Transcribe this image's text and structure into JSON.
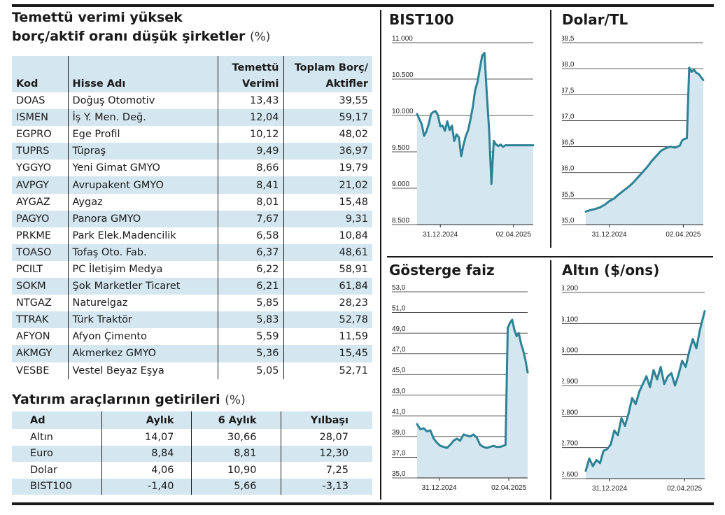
{
  "dividend_section": {
    "title_line1": "Temettü verimi yüksek",
    "title_line2": "borç/aktif oranı düşük şirketler",
    "title_unit": "(%)",
    "headers": {
      "code": "Kod",
      "name": "Hisse Adı",
      "yield_line1": "Temettü",
      "yield_line2": "Verimi",
      "debt_line1": "Toplam Borç/",
      "debt_line2": "Aktifler"
    },
    "rows": [
      {
        "code": "DOAS",
        "name": "Doğuş Otomotiv",
        "yield": "13,43",
        "debt": "39,55"
      },
      {
        "code": "ISMEN",
        "name": "İş Y. Men. Değ.",
        "yield": "12,04",
        "debt": "59,17"
      },
      {
        "code": "EGPRO",
        "name": "Ege Profil",
        "yield": "10,12",
        "debt": "48,02"
      },
      {
        "code": "TUPRS",
        "name": "Tüpraş",
        "yield": "9,49",
        "debt": "36,97"
      },
      {
        "code": "YGGYO",
        "name": "Yeni Gimat GMYO",
        "yield": "8,66",
        "debt": "19,79"
      },
      {
        "code": "AVPGY",
        "name": "Avrupakent GMYO",
        "yield": "8,41",
        "debt": "21,02"
      },
      {
        "code": "AYGAZ",
        "name": "Aygaz",
        "yield": "8,01",
        "debt": "15,48"
      },
      {
        "code": "PAGYO",
        "name": "Panora GMYO",
        "yield": "7,67",
        "debt": "9,31"
      },
      {
        "code": "PRKME",
        "name": "Park Elek.Madencilik",
        "yield": "6,58",
        "debt": "10,84"
      },
      {
        "code": "TOASO",
        "name": "Tofaş Oto. Fab.",
        "yield": "6,37",
        "debt": "48,61"
      },
      {
        "code": "PCILT",
        "name": "PC İletişim Medya",
        "yield": "6,22",
        "debt": "58,91"
      },
      {
        "code": "SOKM",
        "name": "Şok Marketler Ticaret",
        "yield": "6,21",
        "debt": "61,84"
      },
      {
        "code": "NTGAZ",
        "name": "Naturelgaz",
        "yield": "5,85",
        "debt": "28,23"
      },
      {
        "code": "TTRAK",
        "name": "Türk Traktör",
        "yield": "5,83",
        "debt": "52,78"
      },
      {
        "code": "AFYON",
        "name": "Afyon Çimento",
        "yield": "5,59",
        "debt": "11,59"
      },
      {
        "code": "AKMGY",
        "name": "Akmerkez GMYO",
        "yield": "5,36",
        "debt": "15,45"
      },
      {
        "code": "VESBE",
        "name": "Vestel Beyaz Eşya",
        "yield": "5,05",
        "debt": "52,71"
      }
    ]
  },
  "returns_section": {
    "title": "Yatırım araçlarının getirileri",
    "title_unit": "(%)",
    "headers": {
      "asset": "Ad",
      "monthly": "Aylık",
      "six_month": "6 Aylık",
      "ytd": "Yılbaşı"
    },
    "rows": [
      {
        "asset": "Altın",
        "monthly": "14,07",
        "six_month": "30,66",
        "ytd": "28,07"
      },
      {
        "asset": "Euro",
        "monthly": "8,84",
        "six_month": "8,81",
        "ytd": "12,30"
      },
      {
        "asset": "Dolar",
        "monthly": "4,06",
        "six_month": "10,90",
        "ytd": "7,25"
      },
      {
        "asset": "BIST100",
        "monthly": "-1,40",
        "six_month": "5,66",
        "ytd": "-3,13"
      }
    ]
  },
  "colors": {
    "line": "#2d8296",
    "fill": "#d4e6f0",
    "rule": "#1a1a1a",
    "band": "#d4e6f0"
  },
  "chart_data": [
    {
      "type": "area",
      "title": "BIST100",
      "ylim": [
        8500,
        11000
      ],
      "yticks": [
        "11.000",
        "10.500",
        "10.000",
        "9.500",
        "9.000",
        "8.500"
      ],
      "ytick_values": [
        11000,
        10500,
        10000,
        9500,
        9000,
        8500
      ],
      "xticks": [
        "31.12.2024",
        "02.04.2025"
      ],
      "xtick_positions": [
        0.2,
        0.83
      ],
      "x": [
        0,
        0.02,
        0.04,
        0.06,
        0.08,
        0.1,
        0.12,
        0.14,
        0.16,
        0.18,
        0.2,
        0.22,
        0.24,
        0.26,
        0.28,
        0.3,
        0.32,
        0.34,
        0.36,
        0.38,
        0.4,
        0.42,
        0.44,
        0.46,
        0.48,
        0.5,
        0.52,
        0.54,
        0.56,
        0.58,
        0.6,
        0.62,
        0.64,
        0.66,
        0.68,
        0.7,
        0.72,
        0.74,
        0.76,
        0.78,
        0.8,
        0.82,
        0.84,
        0.86,
        0.88,
        0.9,
        0.92,
        0.94,
        0.96,
        0.98,
        1
      ],
      "values": [
        10020,
        9950,
        9880,
        9720,
        9780,
        9880,
        10020,
        10050,
        10060,
        10000,
        9850,
        9860,
        9790,
        9920,
        9800,
        9860,
        9650,
        9740,
        9700,
        9440,
        9600,
        9720,
        9800,
        9950,
        10120,
        10350,
        10460,
        10640,
        10820,
        10860,
        10300,
        9800,
        9060,
        9650,
        9600,
        9580,
        9600,
        9570,
        9590,
        9590,
        9590,
        9590,
        9590,
        9590,
        9590,
        9590,
        9590,
        9590,
        9590,
        9590,
        9590
      ]
    },
    {
      "type": "area",
      "title": "Dolar/TL",
      "ylim": [
        35.0,
        38.5
      ],
      "yticks": [
        "38,5",
        "38,0",
        "37,5",
        "37,0",
        "36,5",
        "36,0",
        "35,5",
        "35,0"
      ],
      "ytick_values": [
        38.5,
        38.0,
        37.5,
        37.0,
        36.5,
        36.0,
        35.5,
        35.0
      ],
      "xticks": [
        "31.12.2024",
        "02.04.2025"
      ],
      "xtick_positions": [
        0.2,
        0.83
      ],
      "x": [
        0,
        0.04,
        0.08,
        0.12,
        0.16,
        0.2,
        0.24,
        0.28,
        0.32,
        0.36,
        0.4,
        0.44,
        0.48,
        0.52,
        0.56,
        0.6,
        0.64,
        0.68,
        0.72,
        0.76,
        0.8,
        0.82,
        0.84,
        0.86,
        0.88,
        0.9,
        0.92,
        0.94,
        0.96,
        1
      ],
      "values": [
        35.25,
        35.28,
        35.3,
        35.33,
        35.38,
        35.45,
        35.5,
        35.58,
        35.65,
        35.72,
        35.8,
        35.9,
        36.0,
        36.1,
        36.22,
        36.32,
        36.42,
        36.47,
        36.5,
        36.48,
        36.52,
        36.62,
        36.65,
        36.66,
        38.02,
        37.94,
        37.98,
        37.92,
        37.9,
        37.78
      ]
    },
    {
      "type": "area",
      "title": "Gösterge faiz",
      "ylim": [
        35.0,
        53.0
      ],
      "yticks": [
        "53,0",
        "51,0",
        "49,0",
        "47,0",
        "45,0",
        "43,0",
        "41,0",
        "39,0",
        "37,0",
        "35,0"
      ],
      "ytick_values": [
        53,
        51,
        49,
        47,
        45,
        43,
        41,
        39,
        37,
        35
      ],
      "xticks": [
        "31.12.2024",
        "02.04.2025"
      ],
      "xtick_positions": [
        0.2,
        0.83
      ],
      "x": [
        0,
        0.03,
        0.06,
        0.09,
        0.12,
        0.15,
        0.18,
        0.21,
        0.24,
        0.27,
        0.3,
        0.33,
        0.36,
        0.39,
        0.42,
        0.45,
        0.48,
        0.51,
        0.54,
        0.57,
        0.6,
        0.63,
        0.66,
        0.69,
        0.72,
        0.75,
        0.78,
        0.8,
        0.82,
        0.84,
        0.86,
        0.88,
        0.9,
        0.92,
        0.94,
        0.96,
        0.98,
        1
      ],
      "values": [
        40.2,
        39.7,
        39.8,
        39.5,
        39.6,
        38.8,
        38.4,
        38.1,
        38.0,
        37.9,
        38.2,
        38.6,
        38.8,
        38.6,
        39.2,
        39.1,
        39.0,
        39.2,
        38.9,
        38.2,
        38.0,
        37.9,
        38.0,
        38.1,
        38.0,
        38.0,
        38.1,
        38.2,
        49.5,
        50.0,
        50.3,
        49.3,
        48.7,
        49.0,
        48.0,
        47.3,
        46.4,
        45.2
      ]
    },
    {
      "type": "area",
      "title": "Altın ($/ons)",
      "ylim": [
        2600,
        3200
      ],
      "yticks": [
        "3.200",
        "3.100",
        "3.000",
        "2.900",
        "2.800",
        "2.700",
        "2.600"
      ],
      "ytick_values": [
        3200,
        3100,
        3000,
        2900,
        2800,
        2700,
        2600
      ],
      "xticks": [
        "31.12.2024",
        "02.04.2025"
      ],
      "xtick_positions": [
        0.2,
        0.83
      ],
      "x": [
        0,
        0.03,
        0.06,
        0.09,
        0.12,
        0.15,
        0.18,
        0.21,
        0.24,
        0.27,
        0.3,
        0.33,
        0.36,
        0.39,
        0.42,
        0.45,
        0.48,
        0.51,
        0.54,
        0.57,
        0.6,
        0.63,
        0.66,
        0.69,
        0.72,
        0.75,
        0.78,
        0.81,
        0.84,
        0.87,
        0.9,
        0.93,
        0.96,
        1
      ],
      "values": [
        2625,
        2665,
        2640,
        2660,
        2650,
        2690,
        2695,
        2710,
        2755,
        2740,
        2795,
        2770,
        2810,
        2860,
        2840,
        2880,
        2905,
        2930,
        2895,
        2950,
        2920,
        2960,
        2905,
        2930,
        2940,
        2900,
        2935,
        2980,
        2960,
        3010,
        3050,
        3020,
        3080,
        3140
      ]
    }
  ]
}
